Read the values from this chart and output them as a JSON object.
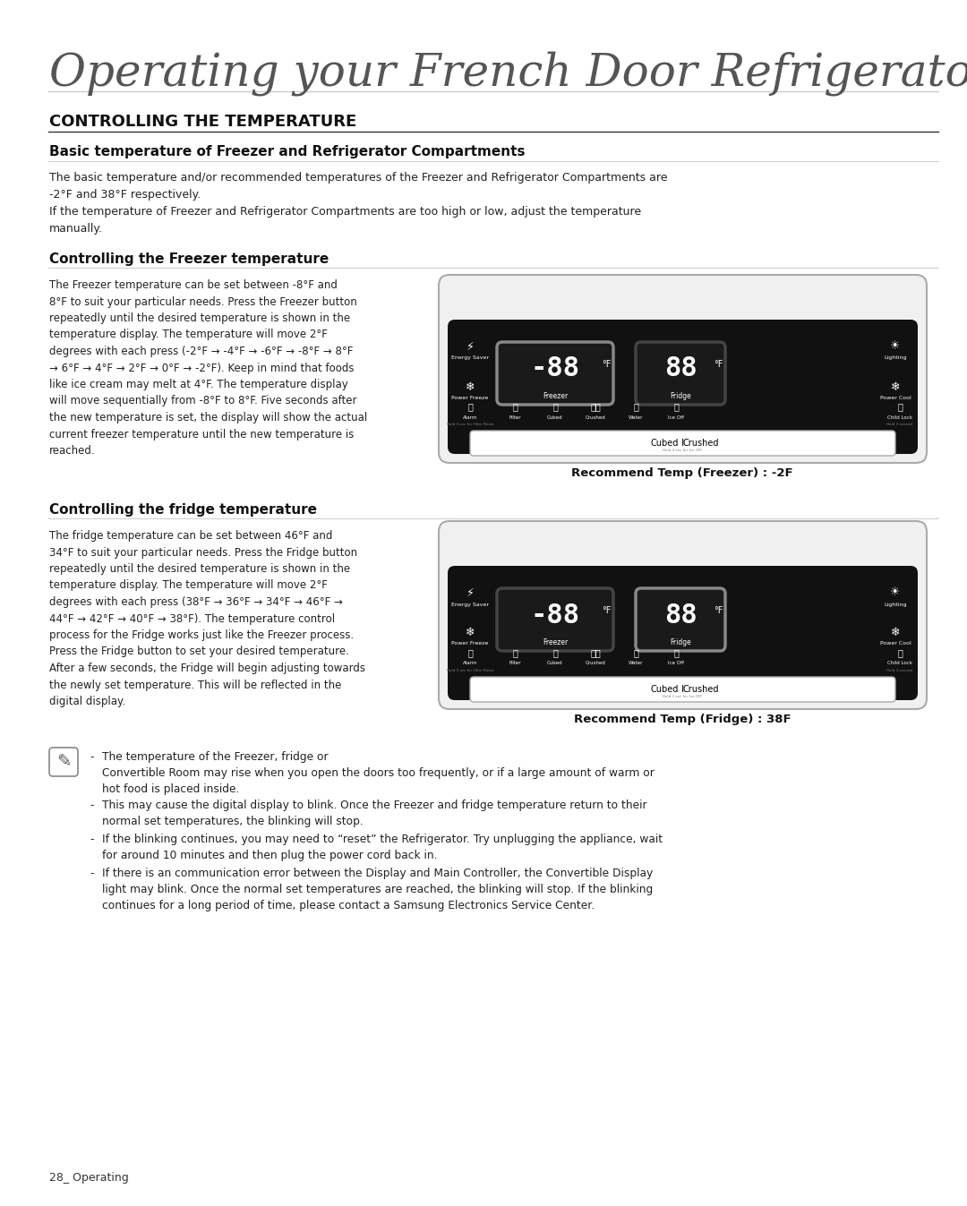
{
  "page_bg": "#ffffff",
  "title_text": "Operating your French Door Refrigerator",
  "section_title": "CONTROLLING THE TEMPERATURE",
  "subsection1_title": "Basic temperature of Freezer and Refrigerator Compartments",
  "subsection1_body": "The basic temperature and/or recommended temperatures of the Freezer and Refrigerator Compartments are\n-2°F and 38°F respectively.\nIf the temperature of Freezer and Refrigerator Compartments are too high or low, adjust the temperature\nmanually.",
  "subsection2_title": "Controlling the Freezer temperature",
  "subsection2_body": "The Freezer temperature can be set between -8°F and\n8°F to suit your particular needs. Press the Freezer button\nrepeatedly until the desired temperature is shown in the\ntemperature display. The temperature will move 2°F\ndegrees with each press (-2°F → -4°F → -6°F → -8°F → 8°F\n→ 6°F → 4°F → 2°F → 0°F → -2°F). Keep in mind that foods\nlike ice cream may melt at 4°F. The temperature display\nwill move sequentially from -8°F to 8°F. Five seconds after\nthe new temperature is set, the display will show the actual\ncurrent freezer temperature until the new temperature is\nreached.",
  "freezer_caption": "Recommend Temp (Freezer) : -2F",
  "subsection3_title": "Controlling the fridge temperature",
  "subsection3_body": "The fridge temperature can be set between 46°F and\n34°F to suit your particular needs. Press the Fridge button\nrepeatedly until the desired temperature is shown in the\ntemperature display. The temperature will move 2°F\ndegrees with each press (38°F → 36°F → 34°F → 46°F →\n44°F → 42°F → 40°F → 38°F). The temperature control\nprocess for the Fridge works just like the Freezer process.\nPress the Fridge button to set your desired temperature.\nAfter a few seconds, the Fridge will begin adjusting towards\nthe newly set temperature. This will be reflected in the\ndigital display.",
  "fridge_caption": "Recommend Temp (Fridge) : 38F",
  "note_bullets": [
    "The temperature of the Freezer, fridge or\nConvertible Room may rise when you open the doors too frequently, or if a large amount of warm or\nhot food is placed inside.",
    "This may cause the digital display to blink. Once the Freezer and fridge temperature return to their\nnormal set temperatures, the blinking will stop.",
    "If the blinking continues, you may need to “reset” the Refrigerator. Try unplugging the appliance, wait\nfor around 10 minutes and then plug the power cord back in.",
    "If there is an communication error between the Display and Main Controller, the Convertible Display\nlight may blink. Once the normal set temperatures are reached, the blinking will stop. If the blinking\ncontinues for a long period of time, please contact a Samsung Electronics Service Center."
  ],
  "footer_text": "28_ Operating"
}
